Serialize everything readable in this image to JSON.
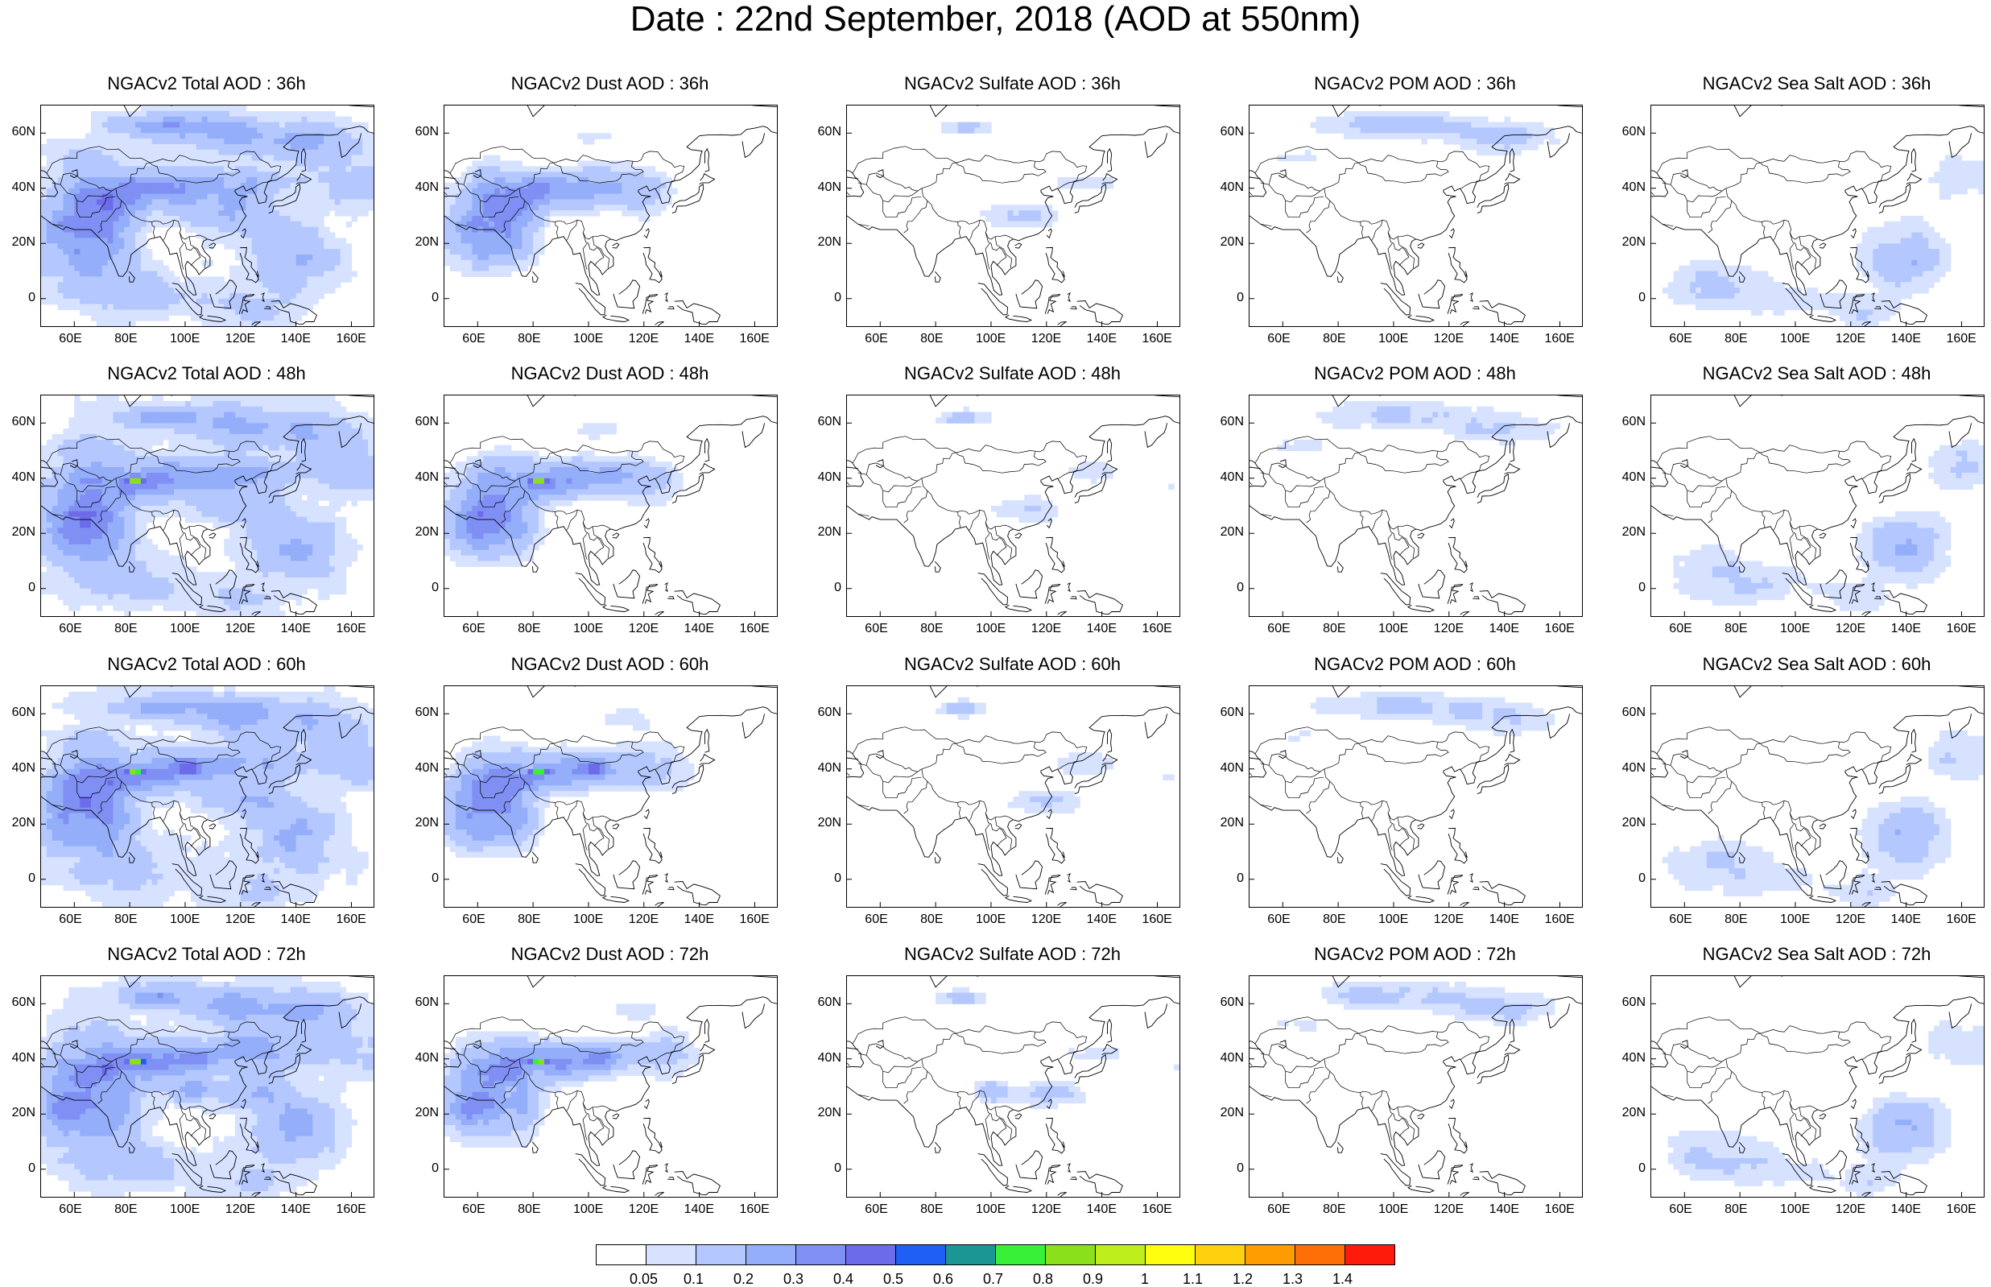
{
  "title": "Date : 22nd September, 2018 (AOD at 550nm)",
  "lon_ticks": [
    "60E",
    "80E",
    "100E",
    "120E",
    "140E",
    "160E"
  ],
  "lon_tick_values": [
    60,
    80,
    100,
    120,
    140,
    160
  ],
  "lat_ticks": [
    "60N",
    "40N",
    "20N",
    "0"
  ],
  "lat_tick_values": [
    60,
    40,
    20,
    0
  ],
  "map_extent": {
    "lon_min": 48,
    "lon_max": 168,
    "lat_min": -10,
    "lat_max": 70
  },
  "species": [
    "total",
    "dust",
    "sulfate",
    "pom",
    "seasalt"
  ],
  "forecast_hours": [
    "36h",
    "48h",
    "60h",
    "72h"
  ],
  "panels": [
    [
      "NGACv2 Total AOD : 36h",
      "NGACv2 Dust AOD : 36h",
      "NGACv2 Sulfate AOD : 36h",
      "NGACv2 POM AOD : 36h",
      "NGACv2 Sea Salt AOD : 36h"
    ],
    [
      "NGACv2 Total AOD : 48h",
      "NGACv2 Dust AOD : 48h",
      "NGACv2 Sulfate AOD : 48h",
      "NGACv2 POM AOD : 48h",
      "NGACv2 Sea Salt AOD : 48h"
    ],
    [
      "NGACv2 Total AOD : 60h",
      "NGACv2 Dust AOD : 60h",
      "NGACv2 Sulfate AOD : 60h",
      "NGACv2 POM AOD : 60h",
      "NGACv2 Sea Salt AOD : 60h"
    ],
    [
      "NGACv2 Total AOD : 72h",
      "NGACv2 Dust AOD : 72h",
      "NGACv2 Sulfate AOD : 72h",
      "NGACv2 POM AOD : 72h",
      "NGACv2 Sea Salt  AOD : 72h"
    ]
  ],
  "colorbar": {
    "labels": [
      "0.05",
      "0.1",
      "0.2",
      "0.3",
      "0.4",
      "0.5",
      "0.6",
      "0.7",
      "0.8",
      "0.9",
      "1",
      "1.1",
      "1.2",
      "1.3",
      "1.4"
    ],
    "colors": [
      "#ffffff",
      "#d6e2ff",
      "#b4c8ff",
      "#94aefa",
      "#7f8ff4",
      "#6c6cea",
      "#1f5ff5",
      "#1c9595",
      "#38f038",
      "#8be01c",
      "#bfef1a",
      "#fefe0e",
      "#fed00e",
      "#fe9c00",
      "#fe6e06",
      "#fe1b0c"
    ],
    "label_fractions": [
      0.0625,
      0.125,
      0.1875,
      0.25,
      0.3125,
      0.375,
      0.4375,
      0.5,
      0.5625,
      0.625,
      0.6875,
      0.75,
      0.8125,
      0.875,
      0.9375
    ]
  },
  "coastline_color": "#000000"
}
